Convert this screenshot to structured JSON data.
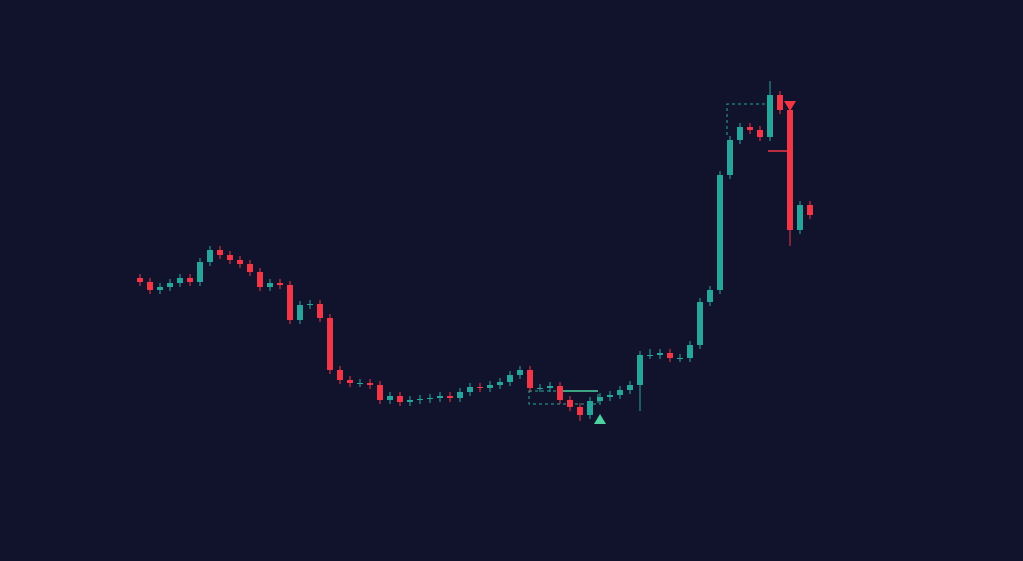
{
  "chart_data": {
    "type": "candlestick",
    "up_color": "#26a69a",
    "down_color": "#f23645",
    "ylim": [
      0,
      561
    ],
    "open": [
      283,
      279,
      271,
      274,
      278,
      283,
      279,
      299,
      311,
      306,
      301,
      297,
      289,
      274,
      278,
      276,
      241,
      256,
      257,
      243,
      191,
      181,
      178,
      178,
      176,
      161,
      165,
      159,
      161,
      162,
      163,
      165,
      163,
      169,
      174,
      173,
      176,
      179,
      186,
      191,
      173,
      173,
      175,
      161,
      154,
      146,
      160,
      164,
      166,
      171,
      176,
      206,
      206,
      208,
      203,
      203,
      216,
      259,
      271,
      386,
      421,
      434,
      431,
      424,
      466,
      451,
      331,
      356
    ],
    "high": [
      287,
      283,
      278,
      282,
      287,
      287,
      303,
      315,
      315,
      310,
      305,
      301,
      293,
      282,
      282,
      280,
      260,
      261,
      261,
      247,
      195,
      185,
      182,
      182,
      180,
      169,
      169,
      165,
      166,
      167,
      169,
      169,
      173,
      178,
      178,
      180,
      183,
      190,
      195,
      195,
      177,
      179,
      179,
      165,
      158,
      164,
      168,
      170,
      175,
      180,
      210,
      212,
      212,
      212,
      207,
      220,
      263,
      275,
      390,
      425,
      438,
      438,
      435,
      480,
      470,
      455,
      360,
      360
    ],
    "low": [
      275,
      267,
      267,
      270,
      274,
      275,
      275,
      295,
      302,
      297,
      293,
      285,
      270,
      270,
      272,
      237,
      237,
      252,
      239,
      187,
      177,
      174,
      174,
      172,
      157,
      157,
      155,
      155,
      157,
      158,
      159,
      159,
      159,
      165,
      169,
      169,
      172,
      175,
      182,
      169,
      169,
      169,
      157,
      150,
      140,
      142,
      156,
      160,
      162,
      167,
      150,
      202,
      202,
      199,
      199,
      199,
      212,
      255,
      267,
      382,
      417,
      427,
      420,
      420,
      447,
      315,
      327,
      342
    ],
    "close": [
      279,
      271,
      274,
      278,
      283,
      279,
      299,
      311,
      306,
      301,
      297,
      289,
      274,
      278,
      276,
      241,
      256,
      257,
      243,
      191,
      181,
      178,
      178,
      176,
      161,
      165,
      159,
      161,
      162,
      163,
      165,
      163,
      169,
      174,
      173,
      176,
      179,
      186,
      191,
      173,
      173,
      175,
      161,
      154,
      146,
      160,
      164,
      166,
      171,
      176,
      206,
      206,
      208,
      203,
      203,
      216,
      259,
      271,
      386,
      421,
      434,
      431,
      424,
      466,
      451,
      331,
      356,
      346
    ],
    "signals": [
      {
        "kind": "buy",
        "index": 46,
        "color": "#4cd3a0"
      },
      {
        "kind": "sell",
        "index": 65,
        "color": "#f23645"
      }
    ]
  }
}
